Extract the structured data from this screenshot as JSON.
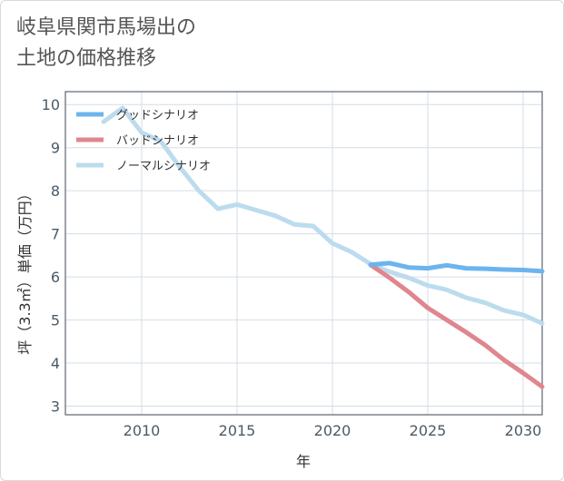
{
  "title": "岐阜県関市馬場出の\n土地の価格推移",
  "chart_data": {
    "type": "line",
    "xlabel": "年",
    "ylabel": "坪（3.3㎡）単価（万円）",
    "xlim": [
      2006,
      2031
    ],
    "ylim": [
      2.8,
      10.3
    ],
    "x_ticks": [
      2010,
      2015,
      2020,
      2025,
      2030
    ],
    "y_ticks": [
      3,
      4,
      5,
      6,
      7,
      8,
      9,
      10
    ],
    "grid": true,
    "legend_position": "top-left",
    "series": [
      {
        "name": "グッドシナリオ",
        "color": "#6cb4ee",
        "x": [
          2022,
          2023,
          2024,
          2025,
          2026,
          2027,
          2028,
          2029,
          2030,
          2031
        ],
        "values": [
          6.28,
          6.32,
          6.22,
          6.2,
          6.27,
          6.2,
          6.19,
          6.17,
          6.16,
          6.13
        ]
      },
      {
        "name": "バッドシナリオ",
        "color": "#e0868e",
        "x": [
          2022,
          2023,
          2024,
          2025,
          2026,
          2027,
          2028,
          2029,
          2030,
          2031
        ],
        "values": [
          6.28,
          5.98,
          5.65,
          5.28,
          5.0,
          4.72,
          4.42,
          4.07,
          3.77,
          3.45
        ]
      },
      {
        "name": "ノーマルシナリオ",
        "color": "#bcdcee",
        "x": [
          2008,
          2009,
          2010,
          2011,
          2012,
          2013,
          2014,
          2015,
          2016,
          2017,
          2018,
          2019,
          2020,
          2021,
          2022,
          2023,
          2024,
          2025,
          2026,
          2027,
          2028,
          2029,
          2030,
          2031
        ],
        "values": [
          9.6,
          9.92,
          9.35,
          9.15,
          8.55,
          8.0,
          7.58,
          7.68,
          7.55,
          7.42,
          7.22,
          7.18,
          6.78,
          6.58,
          6.3,
          6.12,
          5.98,
          5.8,
          5.7,
          5.52,
          5.4,
          5.22,
          5.12,
          4.92
        ]
      }
    ]
  }
}
